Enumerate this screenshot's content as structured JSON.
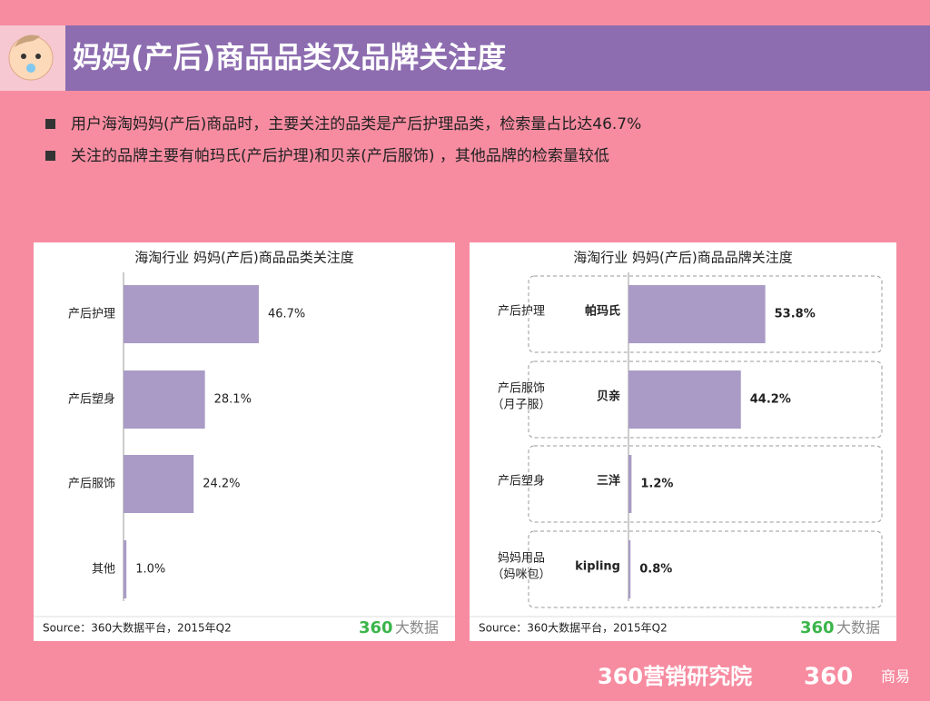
{
  "title": "妈妈(产后)商品品类及品牌关注度",
  "bullets": [
    "用户海淘妈妈(产后)商品时，主要关注的品类是产后护理品类，检索量占比达46.7%",
    "关注的品牌主要有帕玛氏(产后护理)和贝亲(产后服饰) ，其他品牌的检索量较低"
  ],
  "footer": {
    "org": "360营销研究院",
    "brand": "360",
    "sub": "商易"
  },
  "chart_data": [
    {
      "type": "bar",
      "title": "海淘行业 妈妈(产后)商品品类关注度",
      "categories": [
        "产后护理",
        "产后塑身",
        "产后服饰",
        "其他"
      ],
      "values": [
        46.7,
        28.1,
        24.2,
        1.0
      ],
      "value_labels": [
        "46.7%",
        "28.1%",
        "24.2%",
        "1.0%"
      ],
      "color": "#a99bc5",
      "source": "Source：360大数据平台，2015年Q2",
      "logo": [
        "360",
        "大数据"
      ]
    },
    {
      "type": "grouped-bar",
      "title": "海淘行业 妈妈(产后)商品品牌关注度",
      "groups": [
        [
          "产后护理"
        ],
        [
          "产后服饰",
          "（月子服）"
        ],
        [
          "产后塑身"
        ],
        [
          "妈妈用品",
          "（妈咪包）"
        ]
      ],
      "categories": [
        "帕玛氏",
        "贝亲",
        "三洋",
        "kipling"
      ],
      "values": [
        53.8,
        44.2,
        1.2,
        0.8
      ],
      "value_labels": [
        "53.8%",
        "44.2%",
        "1.2%",
        "0.8%"
      ],
      "color": "#a99bc5",
      "source": "Source：360大数据平台，2015年Q2",
      "logo": [
        "360",
        "大数据"
      ]
    }
  ]
}
